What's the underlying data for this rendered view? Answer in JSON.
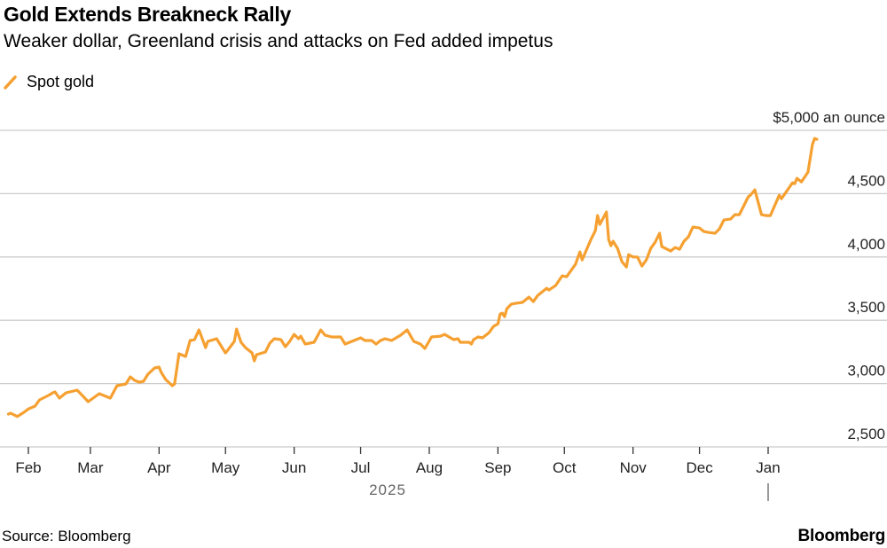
{
  "header": {
    "title": "Gold Extends Breakneck Rally",
    "subtitle": "Weaker dollar, Greenland crisis and attacks on Fed added impetus"
  },
  "footer": {
    "source": "Source: Bloomberg",
    "logo": "Bloomberg"
  },
  "chart_data": {
    "type": "line",
    "title": "Gold Extends Breakneck Rally",
    "subtitle": "Weaker dollar, Greenland crisis and attacks on Fed added impetus",
    "xlabel": "2025",
    "ylabel": "",
    "y_unit_label": "$5,000 an ounce",
    "ylim": [
      2500,
      5000
    ],
    "yticks": [
      2500,
      3000,
      3500,
      4000,
      4500,
      5000
    ],
    "ytick_labels": [
      "2,500",
      "3,000",
      "3,500",
      "4,000",
      "4,500",
      "$5,000 an ounce"
    ],
    "xticks": [
      "2025-02-01",
      "2025-03-01",
      "2025-04-01",
      "2025-05-01",
      "2025-06-01",
      "2025-07-01",
      "2025-08-01",
      "2025-09-01",
      "2025-10-01",
      "2025-11-01",
      "2025-12-01",
      "2026-01-01"
    ],
    "xtick_labels": [
      "Feb",
      "Mar",
      "Apr",
      "May",
      "Jun",
      "Jul",
      "Aug",
      "Sep",
      "Oct",
      "Nov",
      "Dec",
      "Jan"
    ],
    "year_label": "2025",
    "grid": true,
    "legend_placement": "top-left",
    "colors": {
      "series": "#f5a031",
      "grid": "#cccccc",
      "axis_text": "#222222",
      "year_text": "#666666"
    },
    "series": [
      {
        "name": "Spot gold",
        "points": [
          [
            "2025-01-23",
            2759
          ],
          [
            "2025-01-24",
            2766
          ],
          [
            "2025-01-27",
            2740
          ],
          [
            "2025-01-30",
            2773
          ],
          [
            "2025-02-01",
            2800
          ],
          [
            "2025-02-04",
            2822
          ],
          [
            "2025-02-06",
            2871
          ],
          [
            "2025-02-10",
            2906
          ],
          [
            "2025-02-12",
            2927
          ],
          [
            "2025-02-13",
            2934
          ],
          [
            "2025-02-15",
            2885
          ],
          [
            "2025-02-18",
            2927
          ],
          [
            "2025-02-23",
            2948
          ],
          [
            "2025-02-25",
            2913
          ],
          [
            "2025-02-28",
            2857
          ],
          [
            "2025-03-05",
            2920
          ],
          [
            "2025-03-10",
            2885
          ],
          [
            "2025-03-13",
            2983
          ],
          [
            "2025-03-17",
            2997
          ],
          [
            "2025-03-19",
            3053
          ],
          [
            "2025-03-21",
            3025
          ],
          [
            "2025-03-23",
            3011
          ],
          [
            "2025-03-25",
            3018
          ],
          [
            "2025-03-27",
            3074
          ],
          [
            "2025-03-30",
            3123
          ],
          [
            "2025-04-01",
            3130
          ],
          [
            "2025-04-02",
            3088
          ],
          [
            "2025-04-04",
            3032
          ],
          [
            "2025-04-07",
            2983
          ],
          [
            "2025-04-08",
            2997
          ],
          [
            "2025-04-10",
            3235
          ],
          [
            "2025-04-13",
            3214
          ],
          [
            "2025-04-15",
            3340
          ],
          [
            "2025-04-17",
            3347
          ],
          [
            "2025-04-19",
            3424
          ],
          [
            "2025-04-22",
            3284
          ],
          [
            "2025-04-23",
            3333
          ],
          [
            "2025-04-27",
            3354
          ],
          [
            "2025-05-01",
            3242
          ],
          [
            "2025-05-02",
            3263
          ],
          [
            "2025-05-05",
            3333
          ],
          [
            "2025-05-06",
            3431
          ],
          [
            "2025-05-08",
            3326
          ],
          [
            "2025-05-10",
            3284
          ],
          [
            "2025-05-13",
            3242
          ],
          [
            "2025-05-14",
            3179
          ],
          [
            "2025-05-15",
            3228
          ],
          [
            "2025-05-19",
            3249
          ],
          [
            "2025-05-21",
            3319
          ],
          [
            "2025-05-23",
            3354
          ],
          [
            "2025-05-26",
            3347
          ],
          [
            "2025-05-28",
            3291
          ],
          [
            "2025-05-30",
            3333
          ],
          [
            "2025-06-01",
            3389
          ],
          [
            "2025-06-03",
            3354
          ],
          [
            "2025-06-04",
            3375
          ],
          [
            "2025-06-06",
            3312
          ],
          [
            "2025-06-10",
            3326
          ],
          [
            "2025-06-13",
            3424
          ],
          [
            "2025-06-15",
            3382
          ],
          [
            "2025-06-18",
            3368
          ],
          [
            "2025-06-22",
            3368
          ],
          [
            "2025-06-24",
            3312
          ],
          [
            "2025-06-28",
            3340
          ],
          [
            "2025-07-01",
            3361
          ],
          [
            "2025-07-03",
            3340
          ],
          [
            "2025-07-06",
            3340
          ],
          [
            "2025-07-08",
            3312
          ],
          [
            "2025-07-10",
            3340
          ],
          [
            "2025-07-12",
            3354
          ],
          [
            "2025-07-15",
            3340
          ],
          [
            "2025-07-19",
            3382
          ],
          [
            "2025-07-22",
            3424
          ],
          [
            "2025-07-25",
            3333
          ],
          [
            "2025-07-28",
            3312
          ],
          [
            "2025-07-30",
            3277
          ],
          [
            "2025-08-02",
            3368
          ],
          [
            "2025-08-06",
            3375
          ],
          [
            "2025-08-08",
            3389
          ],
          [
            "2025-08-12",
            3347
          ],
          [
            "2025-08-14",
            3354
          ],
          [
            "2025-08-15",
            3326
          ],
          [
            "2025-08-19",
            3326
          ],
          [
            "2025-08-20",
            3312
          ],
          [
            "2025-08-21",
            3347
          ],
          [
            "2025-08-23",
            3368
          ],
          [
            "2025-08-25",
            3361
          ],
          [
            "2025-08-28",
            3403
          ],
          [
            "2025-08-30",
            3452
          ],
          [
            "2025-09-01",
            3473
          ],
          [
            "2025-09-02",
            3550
          ],
          [
            "2025-09-03",
            3557
          ],
          [
            "2025-09-04",
            3529
          ],
          [
            "2025-09-05",
            3592
          ],
          [
            "2025-09-07",
            3627
          ],
          [
            "2025-09-09",
            3634
          ],
          [
            "2025-09-12",
            3641
          ],
          [
            "2025-09-15",
            3683
          ],
          [
            "2025-09-17",
            3648
          ],
          [
            "2025-09-19",
            3697
          ],
          [
            "2025-09-23",
            3753
          ],
          [
            "2025-09-24",
            3739
          ],
          [
            "2025-09-27",
            3774
          ],
          [
            "2025-09-30",
            3851
          ],
          [
            "2025-10-02",
            3844
          ],
          [
            "2025-10-06",
            3942
          ],
          [
            "2025-10-08",
            4040
          ],
          [
            "2025-10-09",
            3977
          ],
          [
            "2025-10-13",
            4138
          ],
          [
            "2025-10-15",
            4208
          ],
          [
            "2025-10-16",
            4327
          ],
          [
            "2025-10-17",
            4257
          ],
          [
            "2025-10-20",
            4355
          ],
          [
            "2025-10-21",
            4138
          ],
          [
            "2025-10-22",
            4089
          ],
          [
            "2025-10-23",
            4124
          ],
          [
            "2025-10-25",
            4068
          ],
          [
            "2025-10-27",
            3963
          ],
          [
            "2025-10-29",
            3921
          ],
          [
            "2025-10-30",
            4019
          ],
          [
            "2025-11-01",
            4000
          ],
          [
            "2025-11-03",
            4000
          ],
          [
            "2025-11-05",
            3928
          ],
          [
            "2025-11-07",
            3977
          ],
          [
            "2025-11-09",
            4068
          ],
          [
            "2025-11-11",
            4117
          ],
          [
            "2025-11-13",
            4187
          ],
          [
            "2025-11-14",
            4082
          ],
          [
            "2025-11-18",
            4047
          ],
          [
            "2025-11-20",
            4075
          ],
          [
            "2025-11-22",
            4061
          ],
          [
            "2025-11-24",
            4124
          ],
          [
            "2025-11-26",
            4159
          ],
          [
            "2025-11-28",
            4236
          ],
          [
            "2025-12-01",
            4229
          ],
          [
            "2025-12-03",
            4201
          ],
          [
            "2025-12-05",
            4194
          ],
          [
            "2025-12-08",
            4187
          ],
          [
            "2025-12-10",
            4222
          ],
          [
            "2025-12-12",
            4292
          ],
          [
            "2025-12-15",
            4299
          ],
          [
            "2025-12-17",
            4334
          ],
          [
            "2025-12-19",
            4334
          ],
          [
            "2025-12-23",
            4474
          ],
          [
            "2025-12-24",
            4488
          ],
          [
            "2025-12-26",
            4530
          ],
          [
            "2025-12-29",
            4334
          ],
          [
            "2025-12-31",
            4327
          ],
          [
            "2026-01-02",
            4327
          ],
          [
            "2026-01-06",
            4488
          ],
          [
            "2026-01-07",
            4460
          ],
          [
            "2026-01-12",
            4586
          ],
          [
            "2026-01-13",
            4579
          ],
          [
            "2026-01-14",
            4621
          ],
          [
            "2026-01-16",
            4593
          ],
          [
            "2026-01-19",
            4670
          ],
          [
            "2026-01-21",
            4887
          ],
          [
            "2026-01-22",
            4936
          ],
          [
            "2026-01-23",
            4929
          ]
        ]
      }
    ]
  }
}
